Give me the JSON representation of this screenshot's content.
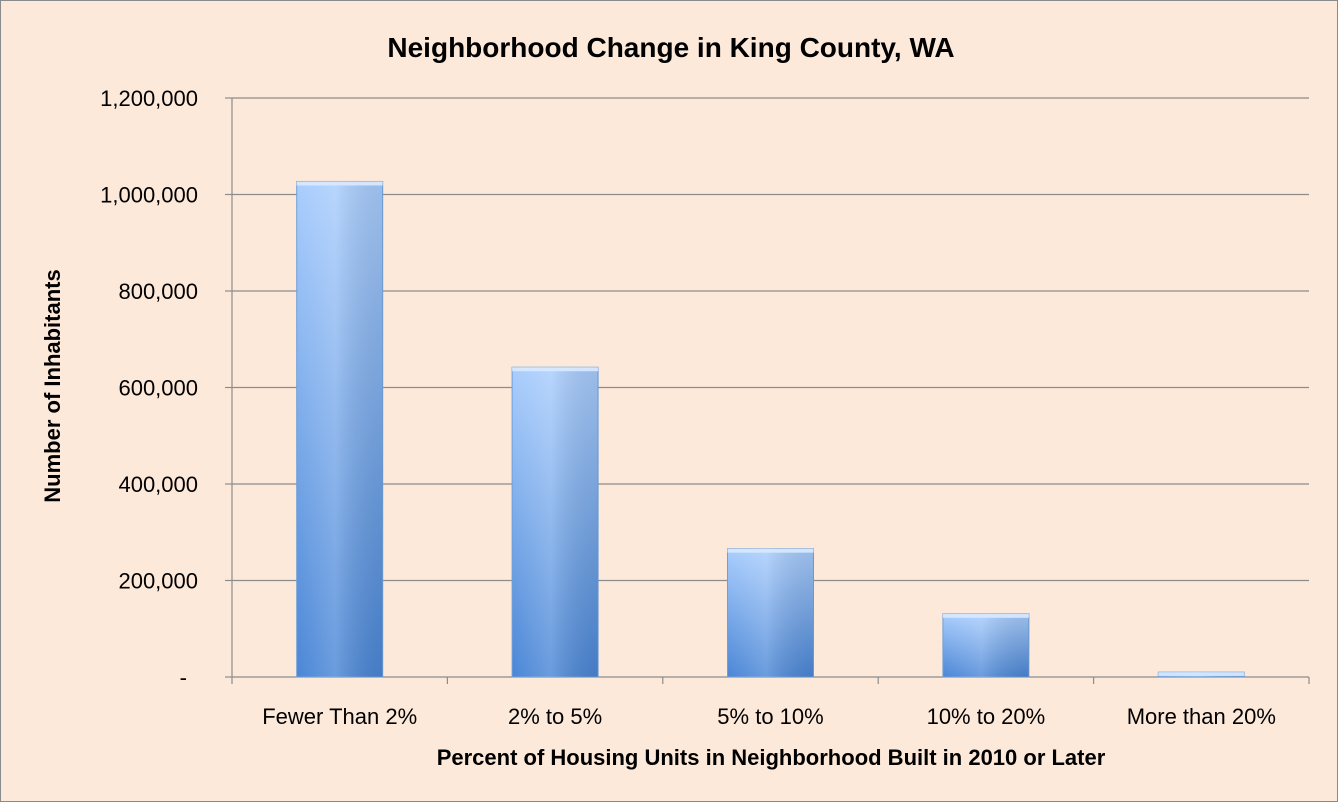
{
  "chart_data": {
    "type": "bar",
    "title": "Neighborhood Change in King County, WA",
    "xlabel": "Percent of Housing Units in Neighborhood Built in 2010 or Later",
    "ylabel": "Number of Inhabitants",
    "categories": [
      "Fewer Than 2%",
      "2% to 5%",
      "5% to 10%",
      "10% to 20%",
      "More than 20%"
    ],
    "values": [
      1027000,
      642000,
      266000,
      131000,
      10000
    ],
    "ylim": [
      0,
      1200000
    ],
    "yticks": [
      0,
      200000,
      400000,
      600000,
      800000,
      1000000,
      1200000
    ],
    "ytick_labels": [
      "-",
      "200,000",
      "400,000",
      "600,000",
      "800,000",
      "1,000,000",
      "1,200,000"
    ],
    "grid": true,
    "legend": "none",
    "colors": {
      "bar_top": "#a9cdfd",
      "bar_bottom": "#4a86d6",
      "grid": "#8c8c8c",
      "background": "#fde9da"
    }
  }
}
